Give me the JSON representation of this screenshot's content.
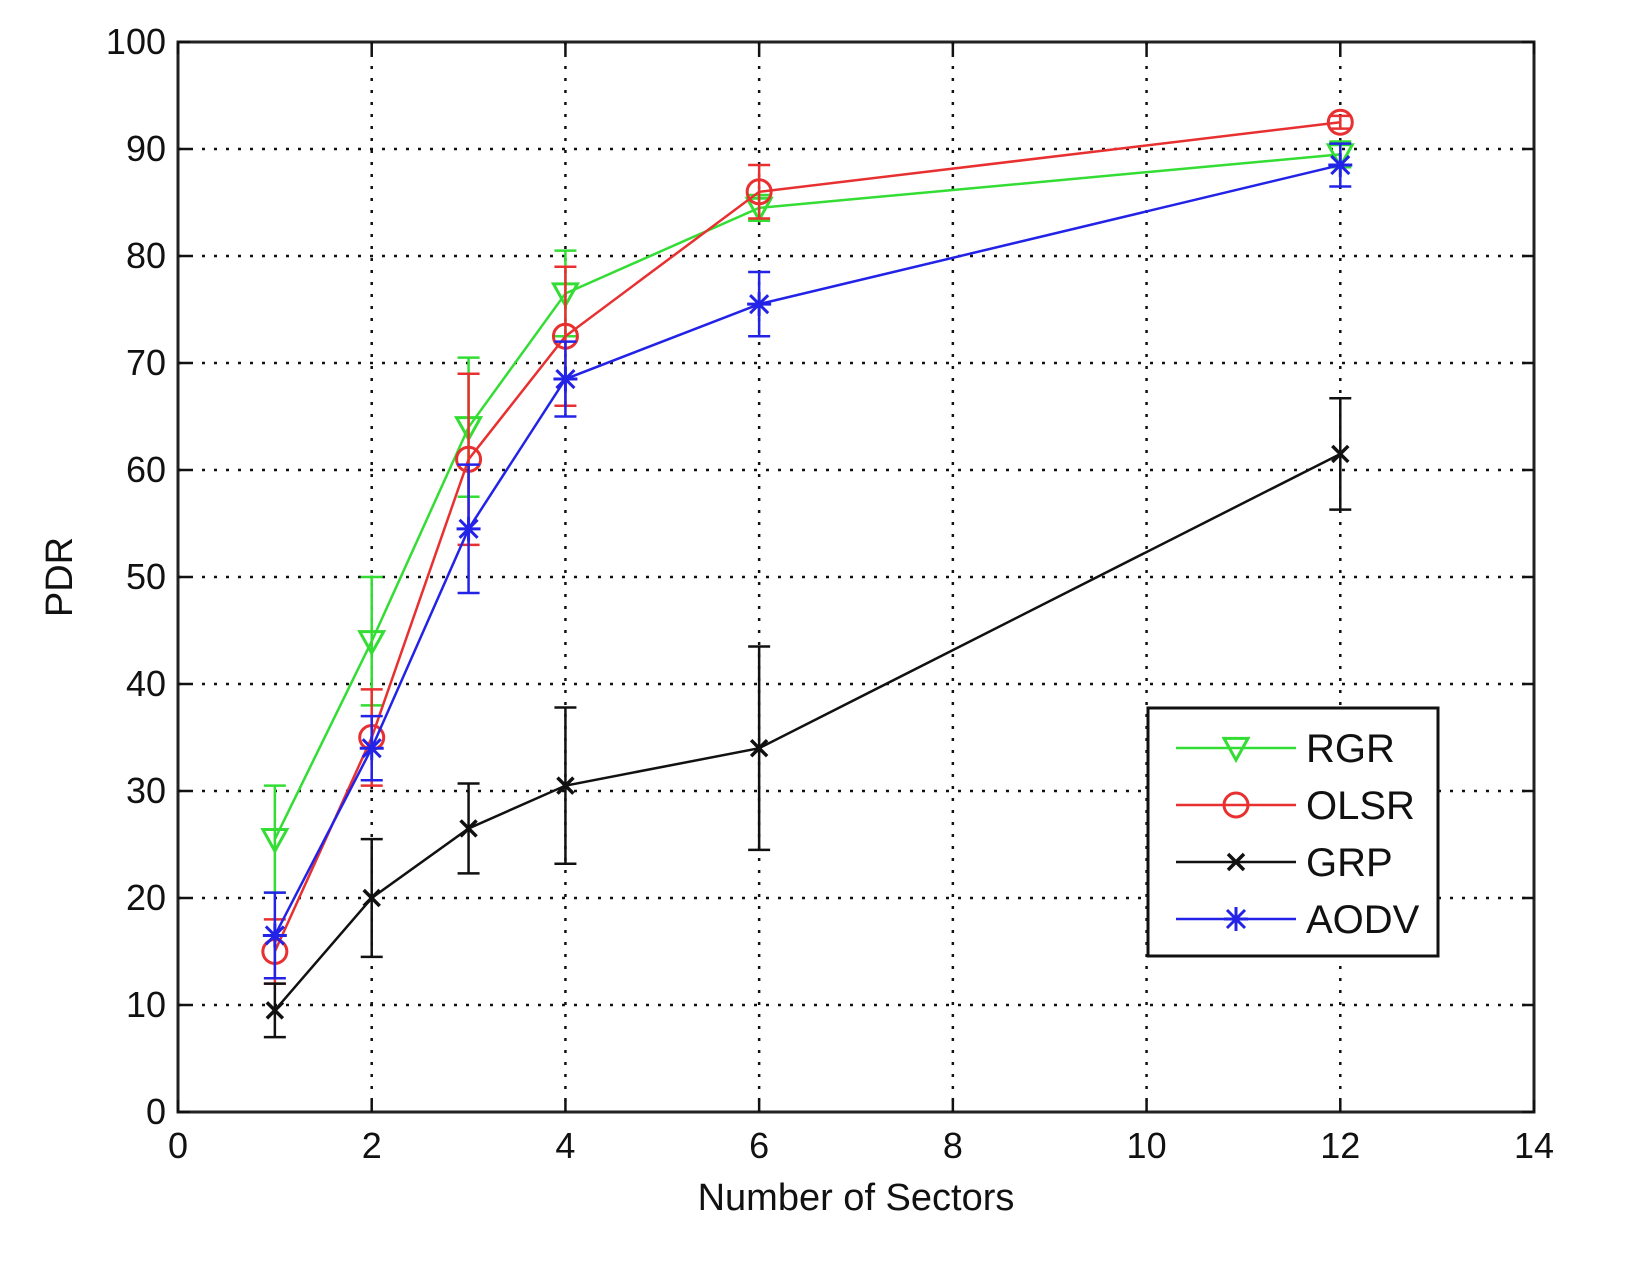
{
  "chart_data": {
    "type": "line",
    "xlabel": "Number of Sectors",
    "ylabel": "PDR",
    "xlim": [
      0,
      14
    ],
    "ylim": [
      0,
      100
    ],
    "xticks": [
      "0",
      "2",
      "4",
      "6",
      "8",
      "10",
      "12",
      "14"
    ],
    "yticks": [
      "0",
      "10",
      "20",
      "30",
      "40",
      "50",
      "60",
      "70",
      "80",
      "90",
      "100"
    ],
    "grid": true,
    "legend_position": "lower-right",
    "x": [
      1,
      2,
      3,
      4,
      6,
      12
    ],
    "series": [
      {
        "name": "RGR",
        "color": "#33dd33",
        "marker": "triangle-down",
        "values": [
          25.5,
          44,
          64,
          76.5,
          84.5,
          89.5
        ],
        "error": [
          5,
          6,
          6.5,
          4,
          1.2,
          1.2
        ]
      },
      {
        "name": "OLSR",
        "color": "#e83030",
        "marker": "circle",
        "values": [
          15,
          35,
          61,
          72.5,
          86,
          92.5
        ],
        "error": [
          3,
          4.5,
          8,
          6.5,
          2.5,
          0.6
        ]
      },
      {
        "name": "GRP",
        "color": "#111111",
        "marker": "x",
        "values": [
          9.5,
          20,
          26.5,
          30.5,
          34,
          61.5
        ],
        "error": [
          2.5,
          5.5,
          4.2,
          7.3,
          9.5,
          5.2
        ]
      },
      {
        "name": "AODV",
        "color": "#2323e8",
        "marker": "star",
        "values": [
          16.5,
          34,
          54.5,
          68.5,
          75.5,
          88.5
        ],
        "error": [
          4,
          3,
          6,
          3.5,
          3,
          2
        ]
      }
    ]
  }
}
